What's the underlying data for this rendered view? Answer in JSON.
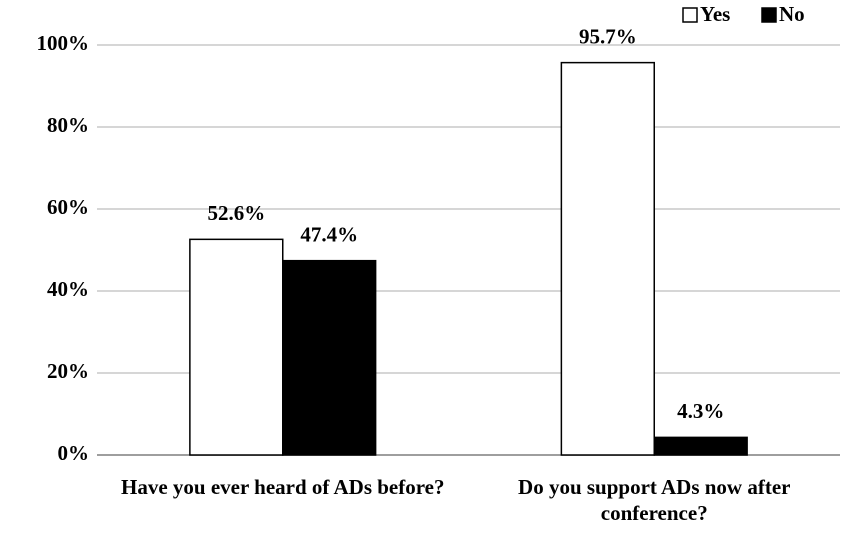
{
  "chart_data": {
    "type": "bar",
    "categories": [
      "Have you ever heard of ADs before?",
      "Do you support ADs now after conference?"
    ],
    "series": [
      {
        "name": "Yes",
        "color": "#ffffff",
        "values": [
          52.6,
          95.7
        ],
        "value_labels": [
          "52.6%",
          "95.7%"
        ]
      },
      {
        "name": "No",
        "color": "#000000",
        "values": [
          47.4,
          4.3
        ],
        "value_labels": [
          "47.4%",
          "4.3%"
        ]
      }
    ],
    "ylim": [
      0,
      100
    ],
    "yticks": [
      {
        "value": 0,
        "label": "0%"
      },
      {
        "value": 20,
        "label": "20%"
      },
      {
        "value": 40,
        "label": "40%"
      },
      {
        "value": 60,
        "label": "60%"
      },
      {
        "value": 80,
        "label": "80%"
      },
      {
        "value": 100,
        "label": "100%"
      }
    ],
    "grid": true,
    "legend": "top-right"
  }
}
